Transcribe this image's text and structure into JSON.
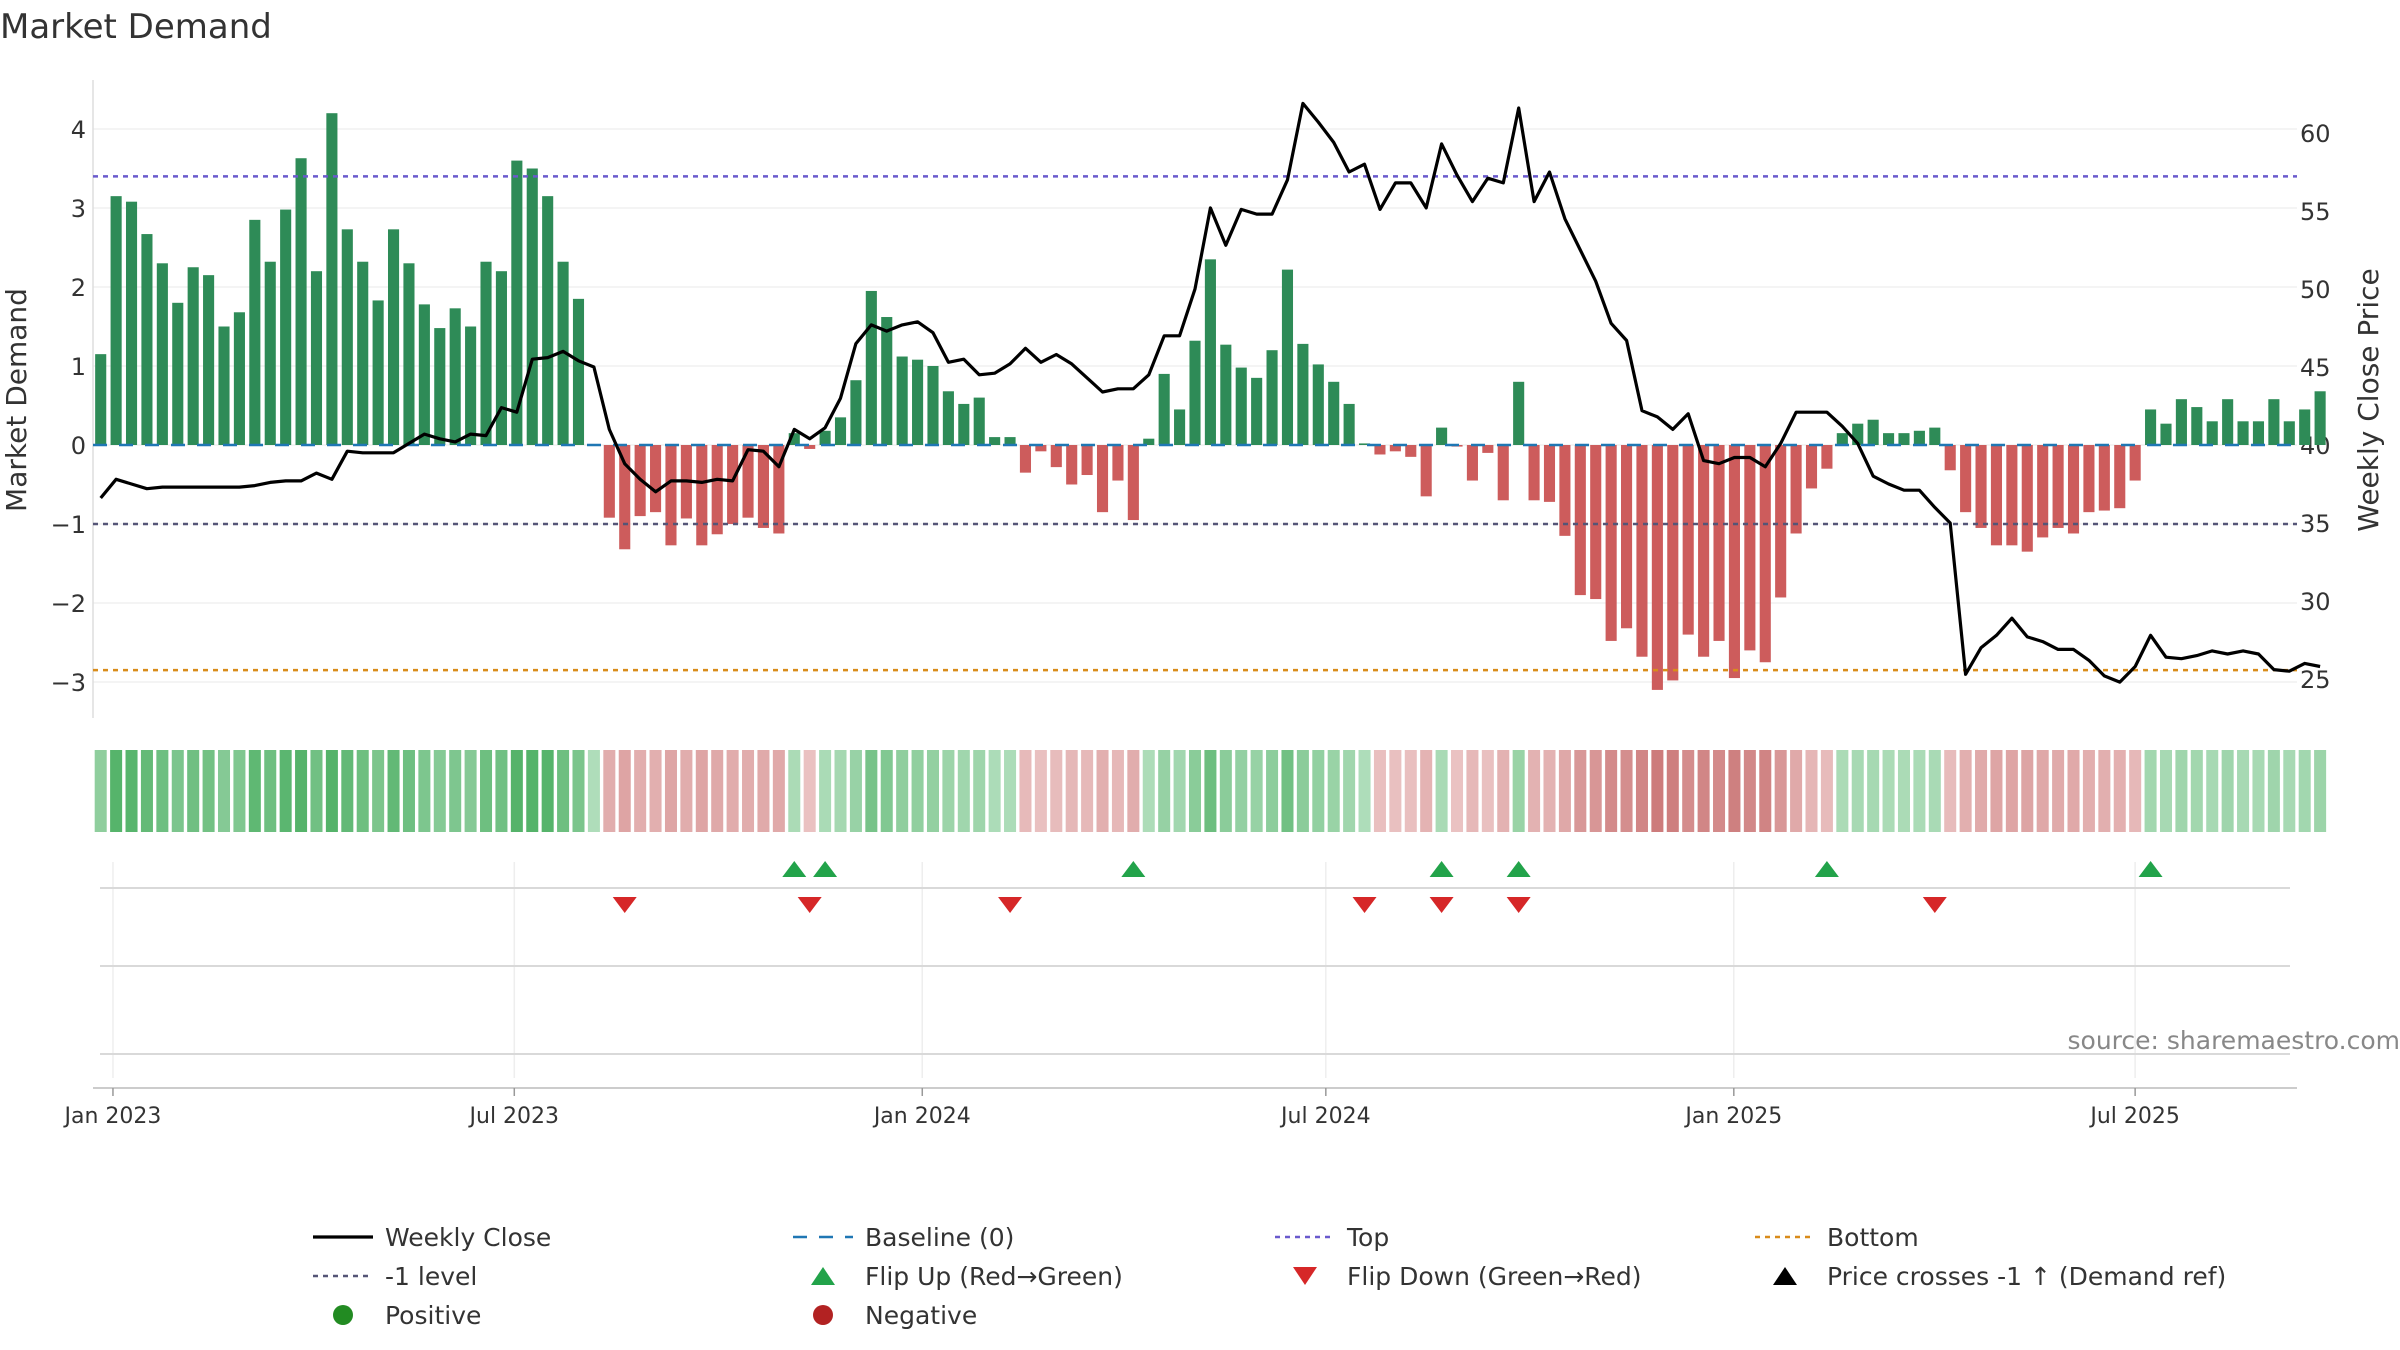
{
  "chart_data": {
    "type": "bar",
    "title": "Market Demand",
    "ylabel": "Market Demand",
    "y2label": "Weekly Close Price",
    "ylim": [
      -3.4,
      4.4
    ],
    "y2lim": [
      24,
      64
    ],
    "yticks": [
      4,
      3,
      2,
      1,
      0,
      -1,
      -2,
      -3
    ],
    "ytick_labels": [
      "4",
      "3",
      "2",
      "1",
      "0",
      "−1",
      "−2",
      "−3"
    ],
    "y2ticks": [
      60,
      55,
      50,
      45,
      40,
      35,
      30,
      25
    ],
    "y2tick_labels": [
      "60",
      "55",
      "50",
      "45",
      "40",
      "35",
      "30",
      "25"
    ],
    "x_start": "2022-12-23",
    "x_end": "2025-09-12",
    "week_count": 143,
    "xticks": [
      {
        "date": "2023-01-01",
        "label": "Jan 2023"
      },
      {
        "date": "2023-07-01",
        "label": "Jul 2023"
      },
      {
        "date": "2024-01-01",
        "label": "Jan 2024"
      },
      {
        "date": "2024-07-01",
        "label": "Jul 2024"
      },
      {
        "date": "2025-01-01",
        "label": "Jan 2025"
      },
      {
        "date": "2025-07-01",
        "label": "Jul 2025"
      }
    ],
    "demand_values": [
      1.15,
      3.15,
      3.08,
      2.67,
      2.3,
      1.8,
      2.25,
      2.15,
      1.5,
      1.68,
      2.85,
      2.32,
      2.98,
      3.63,
      2.2,
      4.2,
      2.73,
      2.32,
      1.83,
      2.73,
      2.3,
      1.78,
      1.48,
      1.73,
      1.5,
      2.32,
      2.2,
      3.6,
      3.5,
      3.15,
      2.32,
      1.85,
      0,
      -0.92,
      -1.32,
      -0.9,
      -0.85,
      -1.27,
      -0.93,
      -1.27,
      -1.13,
      -1.0,
      -0.92,
      -1.05,
      -1.12,
      0.15,
      -0.05,
      0.18,
      0.35,
      0.82,
      1.95,
      1.62,
      1.12,
      1.08,
      1.0,
      0.68,
      0.52,
      0.6,
      0.1,
      0.1,
      -0.35,
      -0.08,
      -0.28,
      -0.5,
      -0.38,
      -0.85,
      -0.45,
      -0.95,
      0.08,
      0.9,
      0.45,
      1.32,
      2.35,
      1.27,
      0.98,
      0.85,
      1.2,
      2.22,
      1.28,
      1.02,
      0.8,
      0.52,
      0.02,
      -0.12,
      -0.08,
      -0.15,
      -0.65,
      0.22,
      -0.02,
      -0.45,
      -0.1,
      -0.7,
      0.8,
      -0.7,
      -0.72,
      -1.15,
      -1.9,
      -1.95,
      -2.48,
      -2.32,
      -2.68,
      -3.1,
      -2.98,
      -2.4,
      -2.68,
      -2.48,
      -2.95,
      -2.6,
      -2.75,
      -1.93,
      -1.12,
      -0.55,
      -0.3,
      0.15,
      0.27,
      0.32,
      0.15,
      0.15,
      0.18,
      0.22,
      -0.32,
      -0.85,
      -1.05,
      -1.27,
      -1.27,
      -1.35,
      -1.17,
      -1.05,
      -1.12,
      -0.85,
      -0.83,
      -0.8,
      -0.45,
      0.45,
      0.27,
      0.58,
      0.48,
      0.3,
      0.58,
      0.3,
      0.3,
      0.58,
      0.3,
      0.45,
      0.68
    ],
    "price_values": [
      36.6,
      37.8,
      37.5,
      37.2,
      37.3,
      37.3,
      37.3,
      37.3,
      37.3,
      37.3,
      37.4,
      37.6,
      37.7,
      37.7,
      38.2,
      37.8,
      39.6,
      39.5,
      39.5,
      39.5,
      40.1,
      40.7,
      40.4,
      40.2,
      40.7,
      40.6,
      42.4,
      42.1,
      45.5,
      45.6,
      46.0,
      45.4,
      45.0,
      41.0,
      38.8,
      37.8,
      37.0,
      37.7,
      37.7,
      37.6,
      37.8,
      37.7,
      39.7,
      39.6,
      38.6,
      41.0,
      40.4,
      41.1,
      43.0,
      46.5,
      47.7,
      47.3,
      47.7,
      47.9,
      47.2,
      45.3,
      45.5,
      44.5,
      44.6,
      45.2,
      46.2,
      45.3,
      45.8,
      45.2,
      44.3,
      43.4,
      43.6,
      43.6,
      44.5,
      47.0,
      47.0,
      50.0,
      55.2,
      52.8,
      55.1,
      54.8,
      54.8,
      57.0,
      61.9,
      60.7,
      59.4,
      57.5,
      58.0,
      55.1,
      56.8,
      56.8,
      55.2,
      59.3,
      57.3,
      55.6,
      57.1,
      56.8,
      61.6,
      55.6,
      57.5,
      54.5,
      52.5,
      50.5,
      47.8,
      46.7,
      42.2,
      41.8,
      41.0,
      42.0,
      39.0,
      38.8,
      39.2,
      39.2,
      38.6,
      40.1,
      42.1,
      42.1,
      42.1,
      41.2,
      40.1,
      38.0,
      37.5,
      37.1,
      37.1,
      36.0,
      35.0,
      25.3,
      27.0,
      27.8,
      28.9,
      27.7,
      27.4,
      26.9,
      26.9,
      26.2,
      25.2,
      24.8,
      25.8,
      27.8,
      26.4,
      26.3,
      26.5,
      26.8,
      26.6,
      26.8,
      26.6,
      25.6,
      25.5,
      26.0,
      25.8
    ],
    "top_level": 3.4,
    "bottom_level": -2.85,
    "minus_one_level": -1,
    "flip_up_weeks": [
      45,
      47,
      67,
      87,
      92,
      112,
      133
    ],
    "flip_down_weeks": [
      34,
      46,
      59,
      82,
      87,
      92,
      119
    ],
    "legend": [
      {
        "name": "leg-weekly-close",
        "label": "Weekly Close",
        "style": "line"
      },
      {
        "name": "leg-baseline",
        "label": "Baseline (0)",
        "style": "dash"
      },
      {
        "name": "leg-top",
        "label": "Top",
        "style": "dot-purple"
      },
      {
        "name": "leg-bottom",
        "label": "Bottom",
        "style": "dot-orange"
      },
      {
        "name": "leg-minus-one",
        "label": "-1 level",
        "style": "dot-gray"
      },
      {
        "name": "leg-flip-up",
        "label": "Flip Up (Red→Green)",
        "style": "tri-up"
      },
      {
        "name": "leg-flip-down",
        "label": "Flip Down (Green→Red)",
        "style": "tri-down"
      },
      {
        "name": "leg-price-cross",
        "label": "Price crosses -1 ↑ (Demand ref)",
        "style": "tri-black"
      },
      {
        "name": "leg-positive",
        "label": "Positive",
        "style": "dot-green"
      },
      {
        "name": "leg-negative",
        "label": "Negative",
        "style": "dot-red"
      }
    ],
    "source": "source: sharemaestro.com"
  },
  "colors": {
    "positive_bar": "#2e8b57",
    "negative_bar": "#cd5c5c",
    "price_line": "#000000",
    "baseline": "#1f77b4",
    "top_line": "#6a5acd",
    "bottom_line": "#d98c1a",
    "minus_one_line": "#555577",
    "flip_up": "#22a34a",
    "flip_down": "#d62728",
    "positive_dot": "#228b22",
    "negative_dot": "#b22222"
  }
}
